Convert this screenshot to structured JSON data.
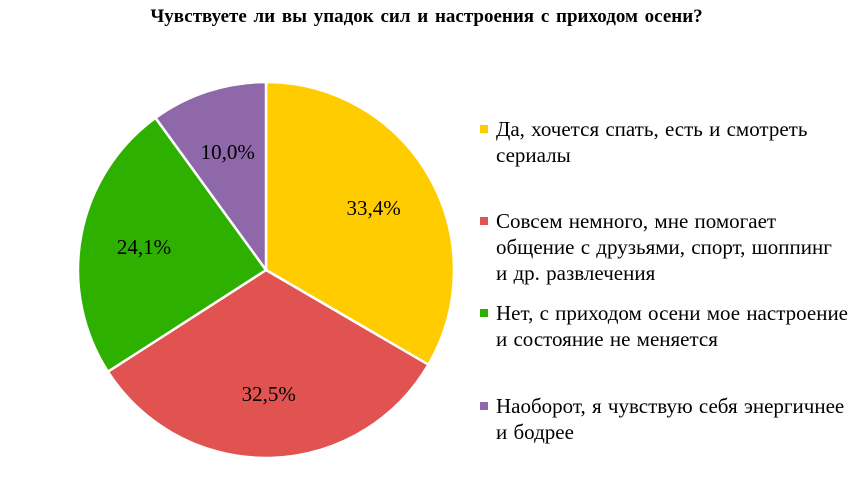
{
  "chart_data": {
    "type": "pie",
    "title": "Чувствуете  ли вы упадок сил и настроения  с приходом осени?",
    "slices": [
      {
        "name": "Да, хочется спать, есть и смотреть сериалы",
        "value": 33.4,
        "label": "33,4%",
        "color": "#FFCC00"
      },
      {
        "name": "Совсем немного, мне помогает общение с друзьями, спорт, шоппинг и др. развлечения",
        "value": 32.5,
        "label": "32,5%",
        "color": "#E05350"
      },
      {
        "name": "Нет, с приходом осени мое настроение и состояние не меняется",
        "value": 24.1,
        "label": "24,1%",
        "color": "#2DB000"
      },
      {
        "name": "Наоборот, я чувствую себя энергичнее и бодрее",
        "value": 10.0,
        "label": "10,0%",
        "color": "#8E68A8"
      }
    ],
    "start_angle": "12 o'clock",
    "direction": "clockwise",
    "legend_position": "right",
    "slice_border_color": "#FFFFFF"
  }
}
